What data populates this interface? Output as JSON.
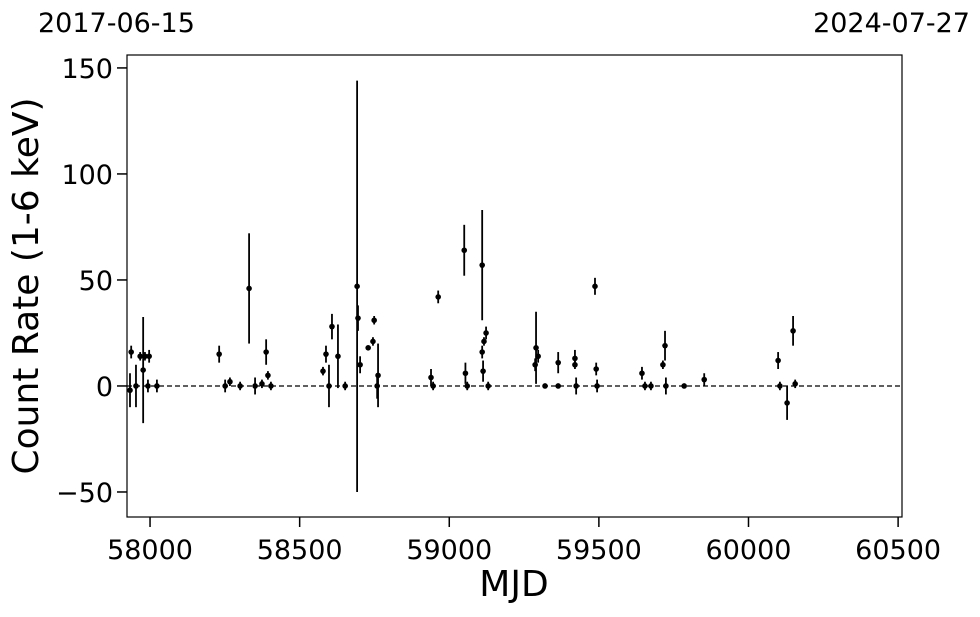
{
  "chart_data": {
    "type": "errorbar-scatter",
    "top_left_label": "2017-06-15",
    "top_right_label": "2024-07-27",
    "x_label": "MJD",
    "y_label": "Count Rate (1-6 keV)",
    "xlim": [
      57923,
      60513
    ],
    "ylim": [
      -61.8,
      156.1
    ],
    "xticks": [
      58000,
      58500,
      59000,
      59500,
      60000,
      60500
    ],
    "yticks": [
      {
        "value": -50,
        "label": "−50"
      },
      0,
      50,
      100,
      150
    ],
    "hline": 0,
    "color": "#000000",
    "series": [
      {
        "name": "Count Rate",
        "x": [
          57933,
          57937,
          57953,
          57967,
          57977,
          57983,
          57993,
          57997,
          58023,
          58231,
          58251,
          58267,
          58301,
          58331,
          58351,
          58374,
          58388,
          58394,
          58404,
          58578,
          58588,
          58598,
          58608,
          58628,
          58652,
          58692,
          58695,
          58702,
          58729,
          58745,
          58749,
          58759,
          58762,
          58939,
          58946,
          58963,
          59050,
          59054,
          59060,
          59110,
          59110,
          59113,
          59116,
          59123,
          59130,
          59287,
          59290,
          59297,
          59320,
          59364,
          59364,
          59420,
          59420,
          59424,
          59487,
          59491,
          59494,
          59644,
          59654,
          59674,
          59714,
          59721,
          59724,
          59785,
          59852,
          60099,
          60105,
          60129,
          60149,
          60156
        ],
        "values": [
          -2,
          16,
          0,
          14,
          7.5,
          14,
          0,
          14,
          0,
          15,
          0,
          2,
          0,
          46,
          0,
          1,
          16,
          5,
          0,
          7,
          15,
          0,
          28,
          14,
          0,
          47,
          32,
          10,
          18,
          21,
          31,
          0,
          5,
          4,
          0,
          42,
          64,
          6,
          0,
          57,
          16,
          7,
          21,
          25,
          0,
          10,
          18,
          14,
          0,
          11,
          0,
          13,
          10,
          0,
          47,
          8,
          0,
          6,
          0,
          0,
          10,
          19,
          0,
          0,
          3,
          12,
          0,
          -8,
          26,
          1
        ],
        "errors": [
          8,
          3,
          10,
          2,
          25,
          2,
          3,
          3,
          3,
          4,
          3,
          2,
          2,
          26,
          4,
          2,
          6,
          2,
          2,
          2,
          4,
          10,
          6,
          15,
          2,
          97,
          6,
          4,
          1,
          2,
          2,
          6,
          15,
          4,
          2,
          3,
          12,
          5,
          2,
          26,
          3,
          5,
          2,
          3,
          2,
          3,
          17,
          3,
          1,
          5,
          1,
          4,
          2,
          4,
          4,
          3,
          3,
          3,
          2,
          2,
          2,
          7,
          4,
          1,
          3,
          4,
          2,
          8,
          7,
          2
        ]
      }
    ]
  }
}
